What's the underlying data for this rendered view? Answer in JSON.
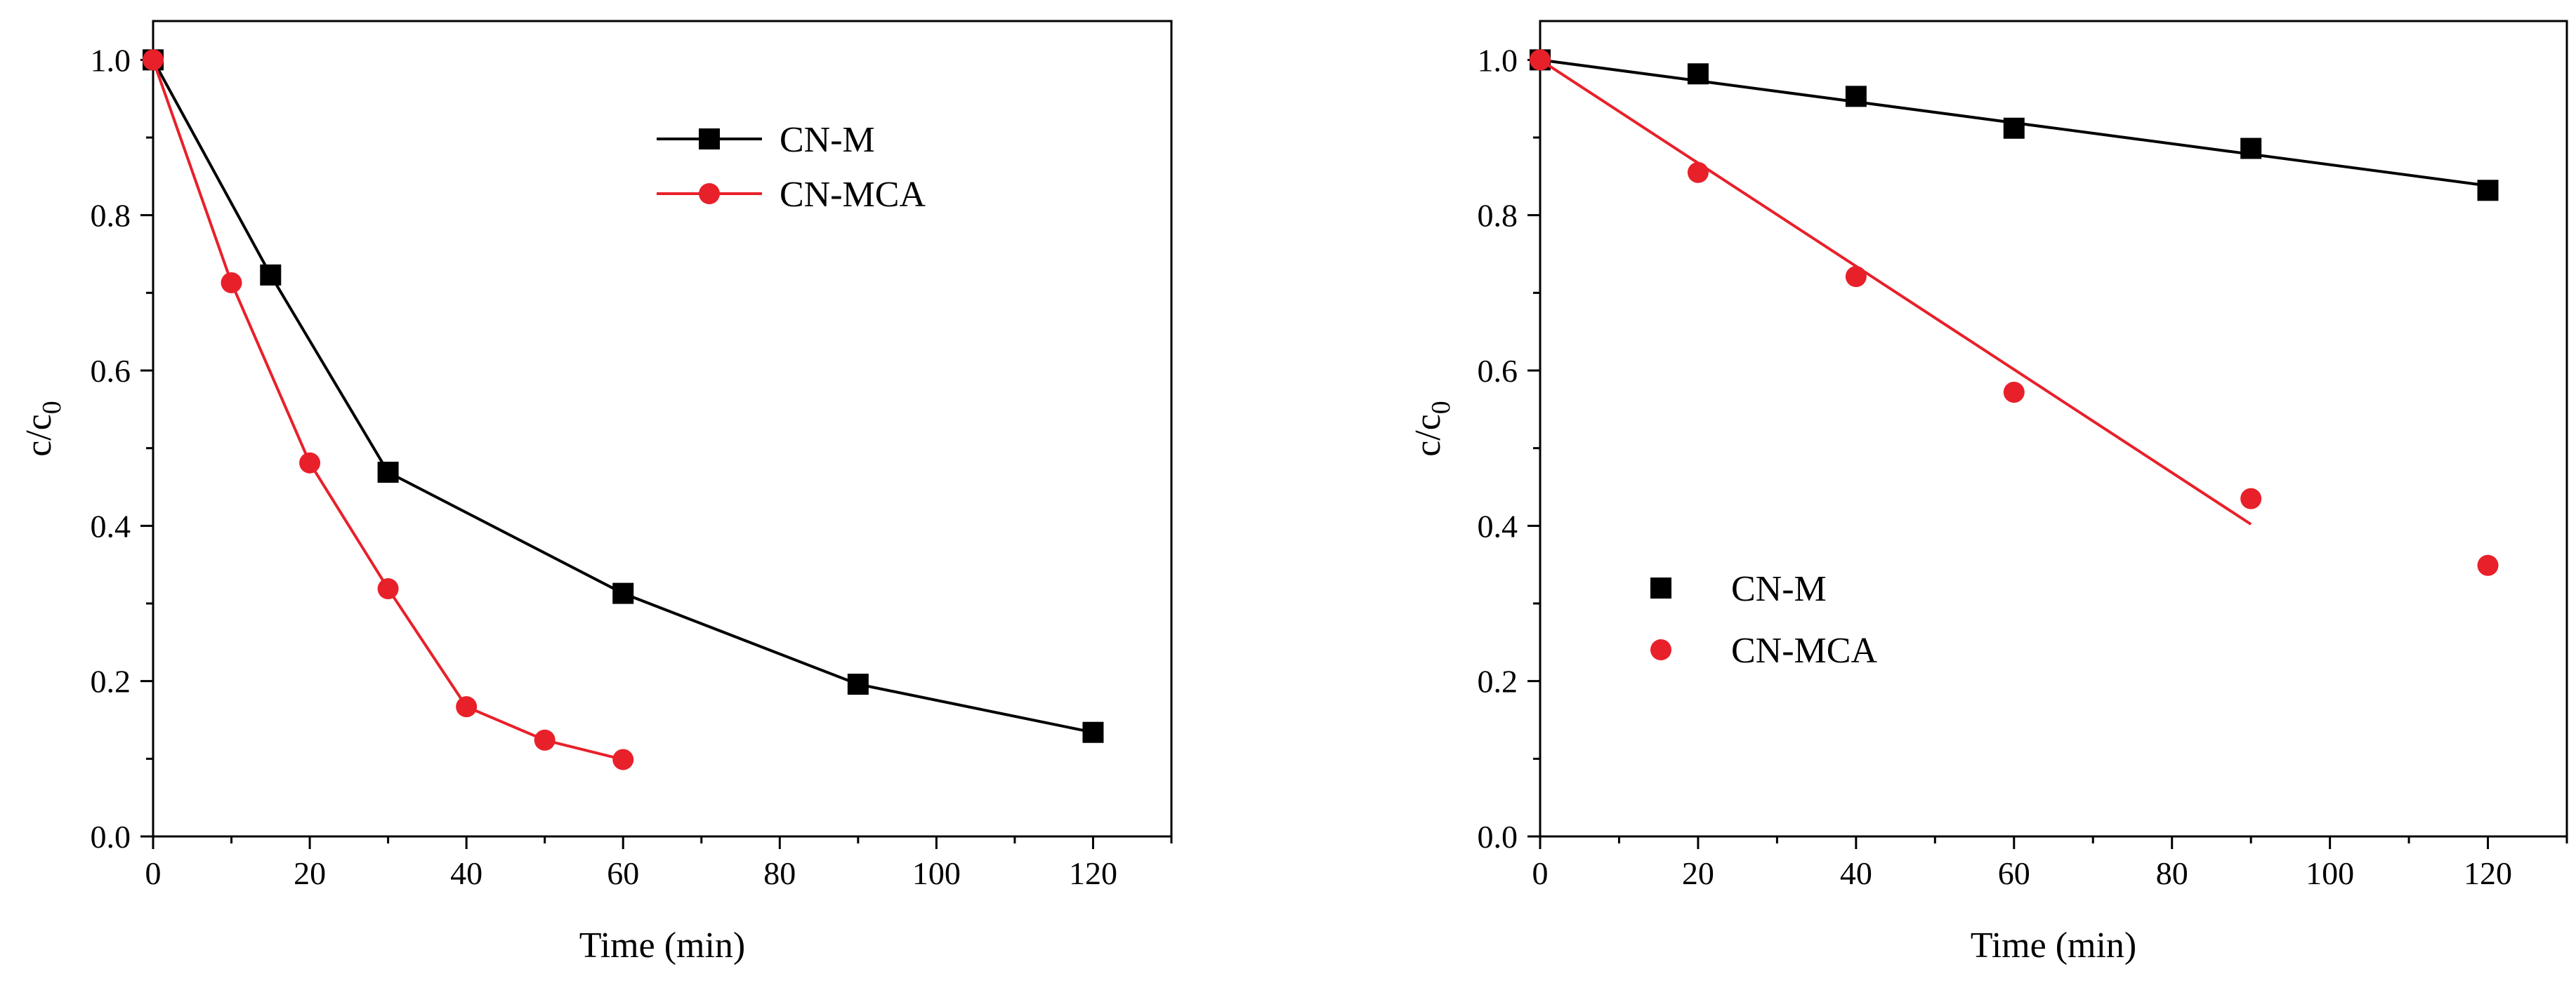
{
  "chart_data": [
    {
      "type": "line",
      "title": "",
      "xlabel": "Time (min)",
      "ylabel_main": "c/c",
      "ylabel_sub": "0",
      "xlim": [
        0,
        130
      ],
      "ylim": [
        0,
        1.05
      ],
      "xticks": [
        0,
        20,
        40,
        60,
        80,
        100,
        120
      ],
      "yticks": [
        0.0,
        0.2,
        0.4,
        0.6,
        0.8,
        1.0
      ],
      "xtick_labels": [
        "0",
        "20",
        "40",
        "60",
        "80",
        "100",
        "120"
      ],
      "ytick_labels": [
        "0.0",
        "0.2",
        "0.4",
        "0.6",
        "0.8",
        "1.0"
      ],
      "legend_position": "top-center",
      "series": [
        {
          "name": "CN-M",
          "marker": "square",
          "color": "#000000",
          "connect": "line",
          "x": [
            0,
            15,
            30,
            60,
            90,
            120
          ],
          "y": [
            1.0,
            0.723,
            0.469,
            0.313,
            0.196,
            0.134
          ]
        },
        {
          "name": "CN-MCA",
          "marker": "circle",
          "color": "#e8202a",
          "connect": "line",
          "x": [
            0,
            10,
            20,
            30,
            40,
            50,
            60
          ],
          "y": [
            1.0,
            0.713,
            0.481,
            0.319,
            0.167,
            0.124,
            0.099
          ]
        }
      ]
    },
    {
      "type": "scatter",
      "title": "",
      "xlabel": "Time (min)",
      "ylabel_main": "c/c",
      "ylabel_sub": "0",
      "xlim": [
        0,
        130
      ],
      "ylim": [
        0,
        1.05
      ],
      "xticks": [
        0,
        20,
        40,
        60,
        80,
        100,
        120
      ],
      "yticks": [
        0.0,
        0.2,
        0.4,
        0.6,
        0.8,
        1.0
      ],
      "xtick_labels": [
        "0",
        "20",
        "40",
        "60",
        "80",
        "100",
        "120"
      ],
      "ytick_labels": [
        "0.0",
        "0.2",
        "0.4",
        "0.6",
        "0.8",
        "1.0"
      ],
      "legend_position": "bottom-left",
      "series": [
        {
          "name": "CN-M",
          "marker": "square",
          "color": "#000000",
          "x": [
            0,
            20,
            40,
            60,
            90,
            120
          ],
          "y": [
            1.0,
            0.982,
            0.953,
            0.912,
            0.886,
            0.832
          ],
          "fit": {
            "x": [
              0,
              120
            ],
            "y": [
              1.0,
              0.838
            ]
          }
        },
        {
          "name": "CN-MCA",
          "marker": "circle",
          "color": "#e8202a",
          "x": [
            0,
            20,
            40,
            60,
            90,
            120
          ],
          "y": [
            1.0,
            0.855,
            0.721,
            0.572,
            0.435,
            0.349
          ],
          "fit": {
            "x": [
              0,
              90
            ],
            "y": [
              1.0,
              0.402
            ]
          }
        }
      ]
    }
  ]
}
